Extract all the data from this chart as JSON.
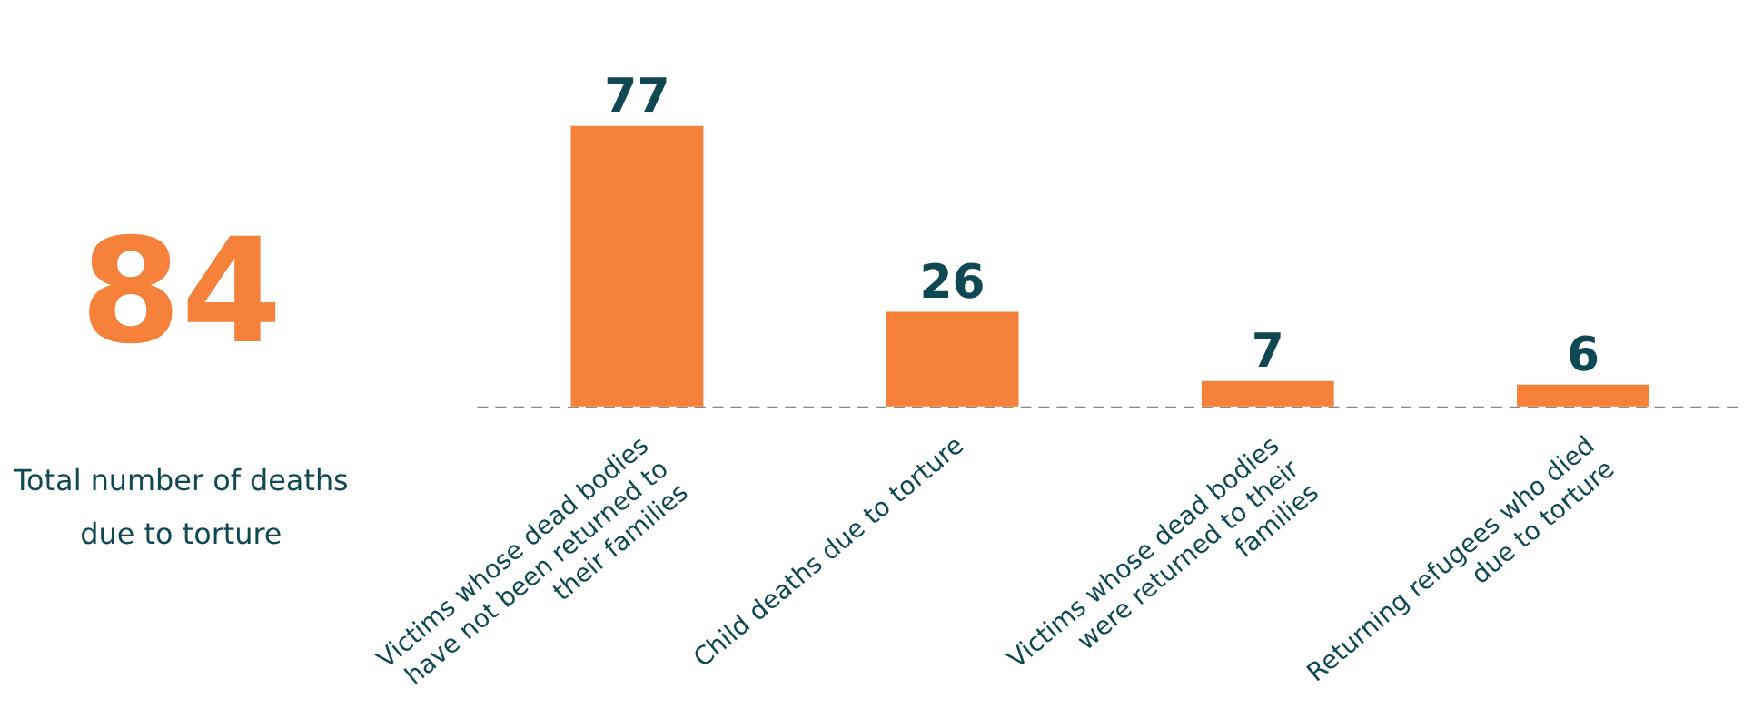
{
  "chart_data": {
    "type": "bar",
    "categories": [
      "Victims whose dead bodies have not been returned to their families",
      "Child deaths due to torture",
      "Victims whose dead bodies were returned to their families",
      "Returning refugees who died due to torture"
    ],
    "values": [
      77,
      26,
      7,
      6
    ],
    "color": "#f5813a",
    "data_labels": true,
    "annotations": [
      "84",
      "Total number of deaths due to torture"
    ]
  }
}
